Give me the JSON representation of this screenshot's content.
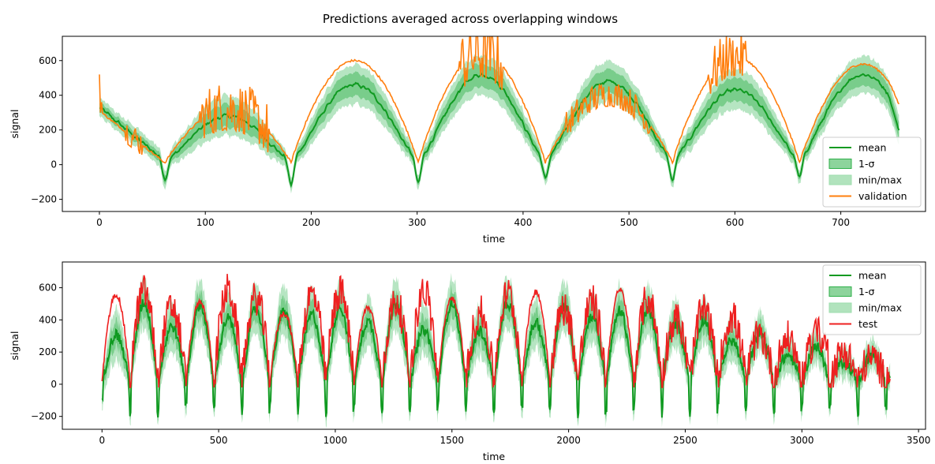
{
  "title": "Predictions averaged across overlapping windows",
  "colors": {
    "mean": "#109a21",
    "band": "#2fb04a",
    "minmax": "#9ddcad",
    "validation": "#ff7f0e",
    "test": "#ee2020"
  },
  "chart_data": [
    {
      "type": "line",
      "xlabel": "time",
      "ylabel": "signal",
      "xlim": [
        -35,
        780
      ],
      "ylim": [
        -270,
        740
      ],
      "xticks": [
        0,
        100,
        200,
        300,
        400,
        500,
        600,
        700
      ],
      "yticks": [
        -200,
        0,
        200,
        400,
        600
      ],
      "legend_position": "lower-right",
      "legend": [
        "mean",
        "1-σ",
        "min/max",
        "validation"
      ],
      "period": 120,
      "x_max": 755,
      "troughs": [
        0,
        62,
        181,
        301,
        421,
        541,
        661
      ],
      "dip_depth": [
        -100,
        -140,
        -130,
        -100,
        -110,
        -95
      ],
      "peaks": [
        {
          "x": 245,
          "mean": 460,
          "truth": 600
        },
        {
          "x": 360,
          "mean": 520,
          "truth": 640
        },
        {
          "x": 485,
          "mean": 480,
          "truth": 400
        },
        {
          "x": 600,
          "mean": 430,
          "truth": 620
        },
        {
          "x": 715,
          "mean": 520,
          "truth": 580
        }
      ],
      "series": [
        {
          "name": "mean",
          "role": "mean"
        },
        {
          "name": "1-σ",
          "role": "sigma"
        },
        {
          "name": "min/max",
          "role": "minmax"
        },
        {
          "name": "validation",
          "role": "truth"
        }
      ]
    },
    {
      "type": "line",
      "xlabel": "time",
      "ylabel": "signal",
      "xlim": [
        -170,
        3530
      ],
      "ylim": [
        -280,
        760
      ],
      "xticks": [
        0,
        500,
        1000,
        1500,
        2000,
        2500,
        3000,
        3500
      ],
      "yticks": [
        -200,
        0,
        200,
        400,
        600
      ],
      "legend_position": "upper-right",
      "legend": [
        "mean",
        "1-σ",
        "min/max",
        "test"
      ],
      "period": 120,
      "x_max": 3380,
      "series": [
        {
          "name": "mean",
          "role": "mean"
        },
        {
          "name": "1-σ",
          "role": "sigma"
        },
        {
          "name": "min/max",
          "role": "minmax"
        },
        {
          "name": "test",
          "role": "truth"
        }
      ]
    }
  ]
}
